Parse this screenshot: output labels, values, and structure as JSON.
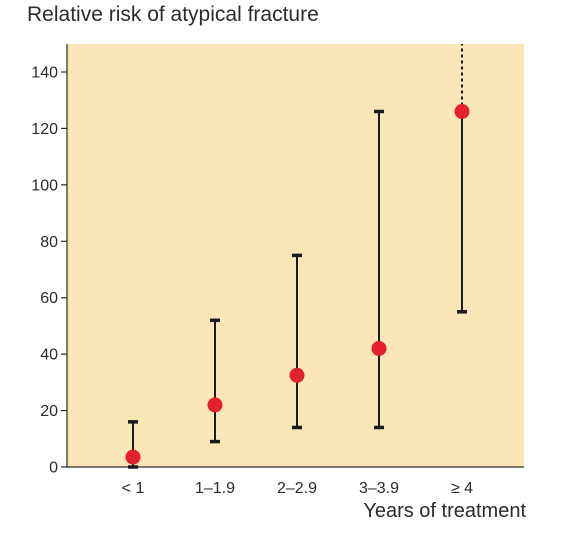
{
  "chart_data": {
    "type": "scatter",
    "title": "Relative risk of atypical fracture",
    "xlabel": "Years of treatment",
    "ylabel": "",
    "categories": [
      "< 1",
      "1–1.9",
      "2–2.9",
      "3–3.9",
      "≥ 4"
    ],
    "ylim": [
      0,
      150
    ],
    "yticks": [
      0,
      20,
      40,
      60,
      80,
      100,
      120,
      140
    ],
    "grid": false,
    "points": [
      {
        "category": "< 1",
        "value": 3.5,
        "ci_low": 0,
        "ci_high": 16
      },
      {
        "category": "1–1.9",
        "value": 22,
        "ci_low": 9,
        "ci_high": 52
      },
      {
        "category": "2–2.9",
        "value": 32.5,
        "ci_low": 14,
        "ci_high": 75
      },
      {
        "category": "3–3.9",
        "value": 42,
        "ci_low": 14,
        "ci_high": 126
      },
      {
        "category": "≥ 4",
        "value": 126,
        "ci_low": 55,
        "ci_high": 150,
        "ci_high_open": true
      }
    ],
    "colors": {
      "plot_background": "#fbe6b8",
      "point": "#e4202a",
      "error_bar": "#1a1a1a",
      "axis": "#2b2b2b"
    }
  }
}
